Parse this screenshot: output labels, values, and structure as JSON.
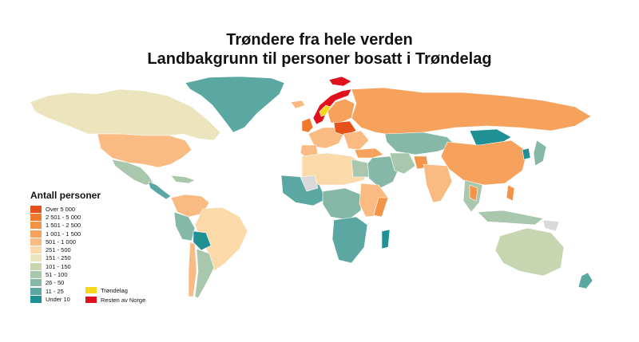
{
  "title_line1": "Trøndere fra hele verden",
  "title_line2": "Landbakgrunn til personer bosatt i Trøndelag",
  "legend": {
    "title": "Antall personer",
    "items": [
      {
        "label": "Over 5 000",
        "color": "#e4521a"
      },
      {
        "label": "2 501 - 5 000",
        "color": "#ef7a2e"
      },
      {
        "label": "1 501 - 2 500",
        "color": "#f39448"
      },
      {
        "label": "1 001 - 1 500",
        "color": "#f7a25c"
      },
      {
        "label": "501 - 1 000",
        "color": "#f9bb82"
      },
      {
        "label": "251 - 500",
        "color": "#fbd9a8"
      },
      {
        "label": "151 - 250",
        "color": "#ebe4bd"
      },
      {
        "label": "101 - 150",
        "color": "#c7d6b1"
      },
      {
        "label": "51 - 100",
        "color": "#a8c7ad"
      },
      {
        "label": "26 - 50",
        "color": "#86b8a8"
      },
      {
        "label": "11 - 25",
        "color": "#5ba8a2"
      },
      {
        "label": "Under 10",
        "color": "#1f9093"
      }
    ],
    "extra": [
      {
        "label": "Trøndelag",
        "color": "#f6d81a"
      },
      {
        "label": "Resten av Norge",
        "color": "#e0101c"
      }
    ]
  },
  "map_colors": {
    "no_data": "#d9d9d9"
  }
}
